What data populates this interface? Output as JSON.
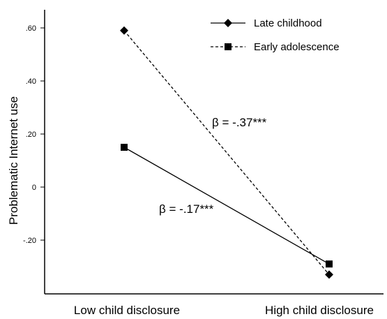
{
  "chart_data": {
    "type": "line",
    "title": "",
    "xlabel": "",
    "ylabel": "Problematic Internet use",
    "categories": [
      "Low child disclosure",
      "High child disclosure"
    ],
    "yticks": [
      ".60",
      ".40",
      ".20",
      "0",
      "-.20"
    ],
    "ylim": [
      -0.34,
      0.62
    ],
    "grid": false,
    "legend_position": "top-right",
    "series": [
      {
        "name": "Late childhood",
        "values": [
          0.59,
          -0.33
        ],
        "line_style": "solid",
        "marker": "diamond",
        "color": "#000000"
      },
      {
        "name": "Early adolescence",
        "values": [
          0.15,
          -0.29
        ],
        "line_style": "dashed",
        "marker": "square",
        "color": "#000000"
      }
    ],
    "annotations": [
      {
        "text": "β = -.37***",
        "x": 0.5,
        "y": 0.24
      },
      {
        "text": "β = -.17***",
        "x": 0.35,
        "y": -0.1
      }
    ]
  }
}
